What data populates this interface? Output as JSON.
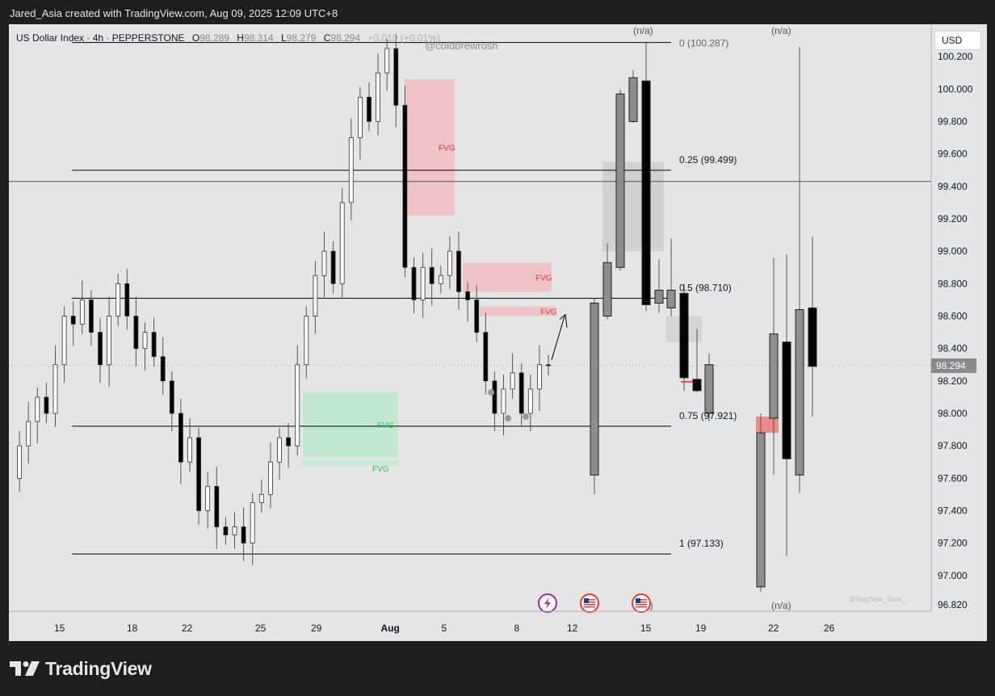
{
  "header": {
    "text": "Jared_Asia created with TradingView.com, Aug 09, 2025 12:09 UTC+8"
  },
  "symbol": {
    "name": "US Dollar Index · 4h · PEPPERSTONE",
    "open_label": "O",
    "open": "98.289",
    "high_label": "H",
    "high": "98.314",
    "low_label": "L",
    "low": "98.279",
    "close_label": "C",
    "close": "98.294",
    "change": "+0.010 (+0.01%)"
  },
  "currency": "USD",
  "watermarks": {
    "top": "@coldbrewrosh",
    "bottom": "@Nephew_Sam_"
  },
  "logo": {
    "text": "TradingView",
    "icon": "tradingview-logo-icon"
  },
  "event_icons": [
    {
      "icon": "lightning-icon",
      "color": "#9c27b0"
    },
    {
      "icon": "us-flag-icon",
      "color": "#e53935"
    },
    {
      "icon": "us-flag-icon",
      "color": "#e53935"
    }
  ],
  "chart_data": {
    "type": "candlestick",
    "title": "US Dollar Index · 4h · PEPPERSTONE",
    "ylim": [
      96.78,
      100.35
    ],
    "y_ticks": [
      "100.200",
      "100.000",
      "99.800",
      "99.600",
      "99.400",
      "99.200",
      "99.000",
      "98.800",
      "98.600",
      "98.400",
      "98.200",
      "98.000",
      "97.800",
      "97.600",
      "97.400",
      "97.200",
      "97.000",
      "96.820"
    ],
    "x_ticks": [
      "15",
      "18",
      "22",
      "25",
      "29",
      "Aug",
      "5",
      "8",
      "12",
      "15",
      "19",
      "22",
      "26"
    ],
    "last_price": "98.294",
    "colors": {
      "up": "#ffffff",
      "down": "#000000",
      "fvg_bear": "#f2b8bc",
      "fvg_bull": "#b7e8c8",
      "fvg_bear_text": "#e53935",
      "fvg_bull_text": "#22c55e"
    },
    "fib_levels": [
      {
        "label": "0 (100.287)",
        "value": 100.287
      },
      {
        "label": "0.25 (99.499)",
        "value": 99.499
      },
      {
        "label": "0.5 (98.710)",
        "value": 98.71
      },
      {
        "label": "0.75 (97.921)",
        "value": 97.921
      },
      {
        "label": "1 (97.133)",
        "value": 97.133
      }
    ],
    "horizontal_line": 99.43,
    "na_labels": [
      "(n/a)",
      "(n/a)",
      "(n/a)",
      "(n/a)"
    ],
    "fvg_zones": [
      {
        "label": "FVG",
        "type": "bearish",
        "top": 100.06,
        "bottom": 99.22
      },
      {
        "label": "FVG",
        "type": "bearish",
        "top": 98.93,
        "bottom": 98.75
      },
      {
        "label": "FVG",
        "type": "bearish",
        "top": 98.66,
        "bottom": 98.6
      },
      {
        "label": "FVG",
        "type": "bullish",
        "top": 98.13,
        "bottom": 97.73
      },
      {
        "label": "FVG",
        "type": "bullish",
        "top": 97.71,
        "bottom": 97.68
      }
    ],
    "price_path": [
      97.6,
      97.8,
      97.95,
      98.1,
      98.0,
      98.3,
      98.6,
      98.55,
      98.7,
      98.5,
      98.3,
      98.6,
      98.8,
      98.6,
      98.4,
      98.5,
      98.35,
      98.2,
      98.0,
      97.7,
      97.85,
      97.4,
      97.55,
      97.3,
      97.25,
      97.3,
      97.2,
      97.45,
      97.5,
      97.7,
      97.85,
      97.8,
      98.3,
      98.6,
      98.85,
      99.0,
      98.8,
      99.3,
      99.7,
      99.95,
      99.8,
      100.1,
      100.25,
      99.9,
      98.9,
      98.7,
      98.9,
      98.8,
      98.85,
      99.0,
      98.75,
      98.7,
      98.5,
      98.2,
      98.0,
      98.15,
      98.25,
      98.0,
      98.15,
      98.3,
      98.294
    ],
    "projection_candles": [
      {
        "o": 97.62,
        "h": 98.71,
        "l": 97.5,
        "c": 98.68
      },
      {
        "o": 98.6,
        "h": 99.05,
        "l": 98.58,
        "c": 98.93
      },
      {
        "o": 98.9,
        "h": 100.0,
        "l": 98.88,
        "c": 99.97
      },
      {
        "o": 99.8,
        "h": 100.12,
        "l": 99.79,
        "c": 100.07
      },
      {
        "o": 100.05,
        "h": 100.29,
        "l": 98.63,
        "c": 98.67
      },
      {
        "o": 98.68,
        "h": 98.95,
        "l": 98.62,
        "c": 98.76
      },
      {
        "o": 98.65,
        "h": 99.08,
        "l": 98.6,
        "c": 98.76
      },
      {
        "o": 98.74,
        "h": 98.8,
        "l": 98.14,
        "c": 98.22
      },
      {
        "o": 98.21,
        "h": 98.52,
        "l": 98.13,
        "c": 98.14
      },
      {
        "o": 98.0,
        "h": 98.37,
        "l": 97.95,
        "c": 98.3
      },
      {
        "o": 96.93,
        "h": 98.0,
        "l": 96.9,
        "c": 97.88
      },
      {
        "o": 97.97,
        "h": 98.96,
        "l": 97.62,
        "c": 98.49
      },
      {
        "o": 98.44,
        "h": 98.98,
        "l": 97.12,
        "c": 97.72
      },
      {
        "o": 97.62,
        "h": 100.26,
        "l": 97.51,
        "c": 98.64
      },
      {
        "o": 98.65,
        "h": 99.09,
        "l": 97.98,
        "c": 98.29
      }
    ]
  }
}
